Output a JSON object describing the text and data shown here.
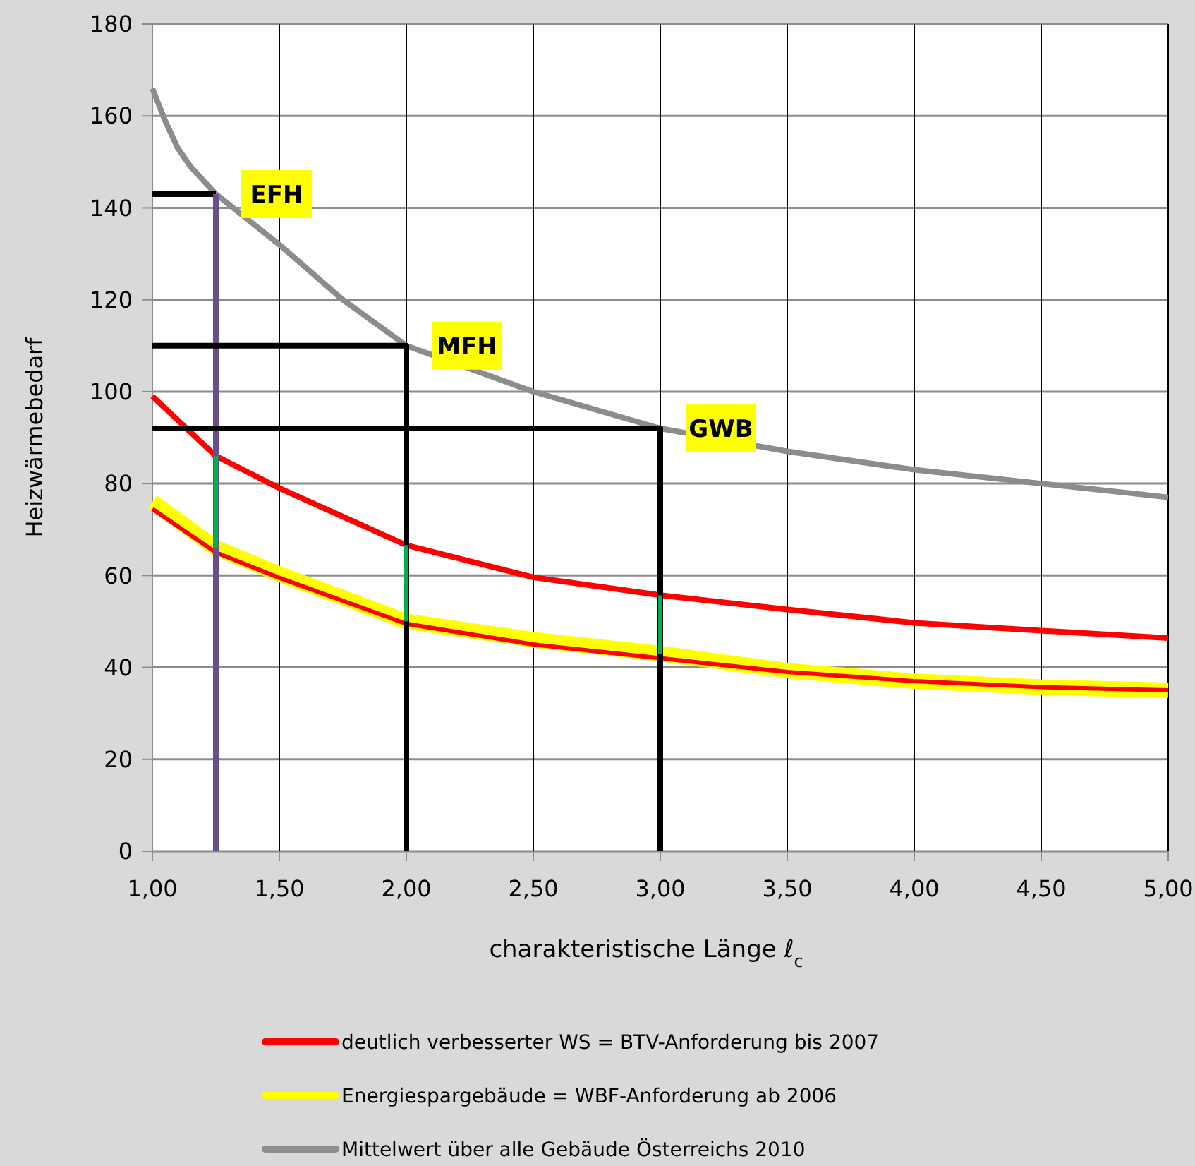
{
  "chart_data": {
    "type": "line",
    "xlabel": "charakteristische Länge ℓ$_{c}$",
    "ylabel": "Heizwärmebedarf",
    "xlim": [
      1,
      5
    ],
    "ylim": [
      0,
      180
    ],
    "xticks": [
      {
        "value": 1,
        "label": "1,00"
      },
      {
        "value": 1.5,
        "label": "1,50"
      },
      {
        "value": 2,
        "label": "2,00"
      },
      {
        "value": 2.5,
        "label": "2,50"
      },
      {
        "value": 3,
        "label": "3,00"
      },
      {
        "value": 3.5,
        "label": "3,50"
      },
      {
        "value": 4,
        "label": "4,00"
      },
      {
        "value": 4.5,
        "label": "4,50"
      },
      {
        "value": 5,
        "label": "5,00"
      }
    ],
    "yticks": [
      0,
      20,
      40,
      60,
      80,
      100,
      120,
      140,
      160,
      180
    ],
    "grid": true,
    "legend": "bottom",
    "marker": "none",
    "line_style": "solid",
    "series": [
      {
        "name": "deutlich verbesserter WS = BTV-Anforderung bis 2007",
        "color": "#ff0000",
        "x": [
          1,
          1.25,
          1.5,
          2,
          2.5,
          3,
          3.5,
          4,
          4.5,
          5
        ],
        "values": [
          99,
          86,
          79,
          66.6,
          59.6,
          55.7,
          52.6,
          49.7,
          48,
          46.4
        ]
      },
      {
        "name": "Energiespargebäude = WBF-Anforderung ab 2006",
        "color": "#ffff00",
        "x": [
          1,
          1.25,
          1.5,
          2,
          2.5,
          3,
          3.5,
          4,
          4.5,
          5
        ],
        "values": [
          76,
          66,
          60.3,
          50,
          46,
          43,
          39.3,
          37,
          35.7,
          35
        ]
      },
      {
        "name": "Mittelwert über alle Gebäude Österreichs 2010",
        "color": "#8c8c8c",
        "x": [
          1,
          1.05,
          1.1,
          1.15,
          1.25,
          1.5,
          1.75,
          2,
          2.5,
          3,
          3.5,
          4,
          4.5,
          5
        ],
        "values": [
          166,
          159,
          153,
          149,
          143,
          132,
          120,
          110,
          100,
          92,
          87,
          83,
          80,
          77
        ]
      },
      {
        "color": "#ff0000",
        "x": [
          1,
          1.25,
          1.5,
          2,
          2.5,
          3,
          3.5,
          4,
          4.5,
          5
        ],
        "values": [
          74.5,
          65,
          59.5,
          49.5,
          45,
          42,
          39,
          37,
          35.7,
          35
        ]
      },
      {
        "color": "#000000",
        "x": [
          1,
          1.25
        ],
        "values": [
          143,
          143
        ]
      },
      {
        "color": "#6a4f8f",
        "x": [
          1.25,
          1.25
        ],
        "values": [
          143,
          0
        ]
      },
      {
        "color": "#000000",
        "x": [
          1,
          2,
          2
        ],
        "values": [
          110,
          110,
          0
        ]
      },
      {
        "color": "#000000",
        "x": [
          1,
          3,
          3
        ],
        "values": [
          92,
          92,
          0
        ]
      },
      {
        "color": "#00b050",
        "x": [
          1.25,
          1.25
        ],
        "values": [
          66,
          86
        ]
      },
      {
        "color": "#00b050",
        "x": [
          2,
          2
        ],
        "values": [
          50,
          66.6
        ]
      },
      {
        "color": "#00b050",
        "x": [
          3,
          3
        ],
        "values": [
          43,
          55.7
        ]
      }
    ],
    "annotations": [
      {
        "text": "EFH",
        "x": 1.25,
        "y": 143
      },
      {
        "text": "MFH",
        "x": 2,
        "y": 110
      },
      {
        "text": "GWB",
        "x": 3,
        "y": 92
      }
    ]
  }
}
